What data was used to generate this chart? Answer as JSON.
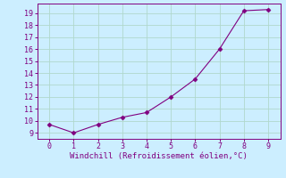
{
  "x": [
    0,
    1,
    2,
    3,
    4,
    5,
    6,
    7,
    8,
    9
  ],
  "y": [
    9.7,
    9.0,
    9.7,
    10.3,
    10.7,
    12.0,
    13.5,
    16.0,
    19.2,
    19.3
  ],
  "line_color": "#800080",
  "marker": "D",
  "marker_size": 2.5,
  "bg_color": "#cceeff",
  "grid_color": "#b0d8cc",
  "xlabel": "Windchill (Refroidissement éolien,°C)",
  "xlabel_color": "#800080",
  "tick_color": "#800080",
  "spine_color": "#800080",
  "xlim": [
    -0.5,
    9.5
  ],
  "ylim": [
    8.5,
    19.8
  ],
  "yticks": [
    9,
    10,
    11,
    12,
    13,
    14,
    15,
    16,
    17,
    18,
    19
  ],
  "xticks": [
    0,
    1,
    2,
    3,
    4,
    5,
    6,
    7,
    8,
    9
  ],
  "tick_labelsize": 6,
  "xlabel_fontsize": 6.5,
  "linewidth": 0.8
}
